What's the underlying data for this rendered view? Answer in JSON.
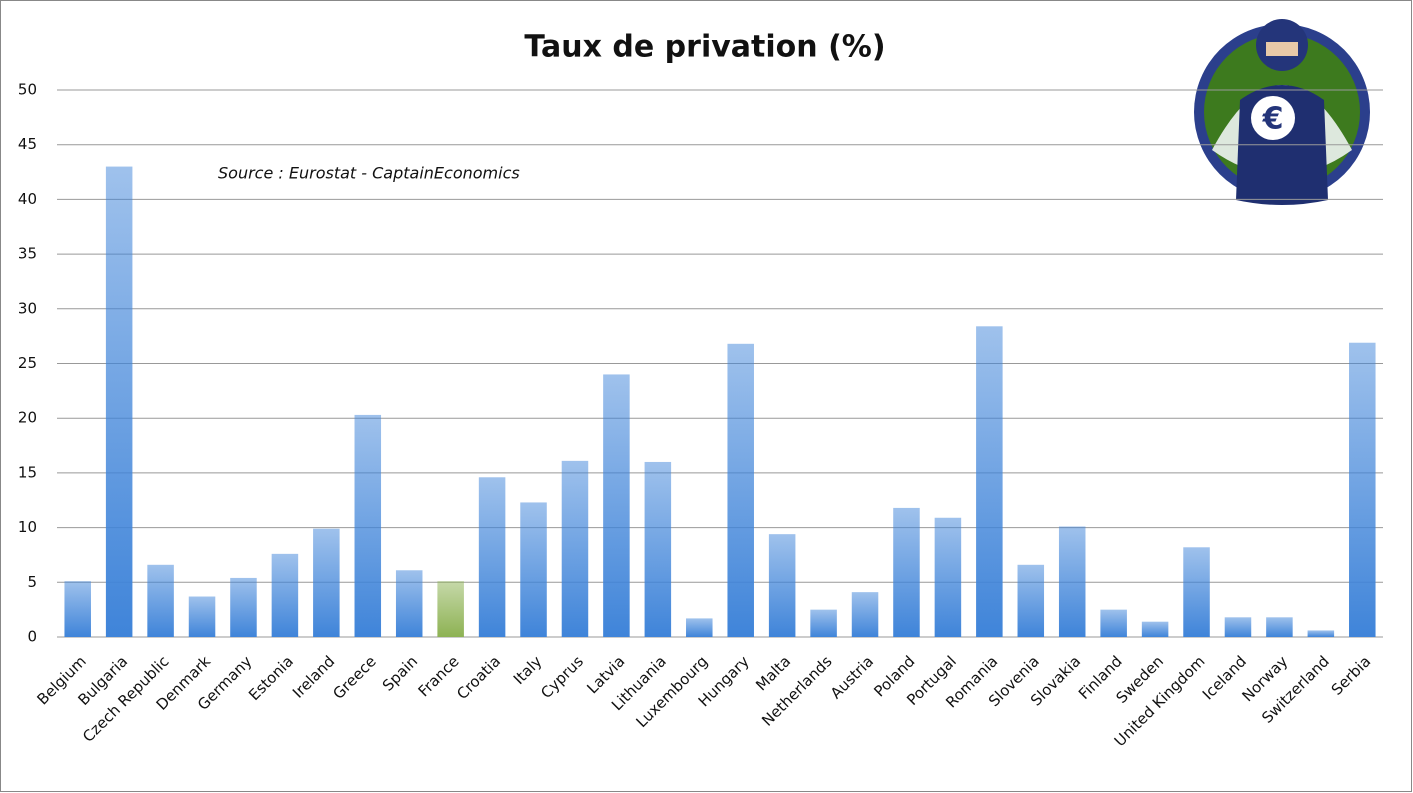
{
  "chart_data": {
    "type": "bar",
    "title": "Taux de privation (%)",
    "annotation": "Source : Eurostat - CaptainEconomics",
    "categories": [
      "Belgium",
      "Bulgaria",
      "Czech Republic",
      "Denmark",
      "Germany",
      "Estonia",
      "Ireland",
      "Greece",
      "Spain",
      "France",
      "Croatia",
      "Italy",
      "Cyprus",
      "Latvia",
      "Lithuania",
      "Luxembourg",
      "Hungary",
      "Malta",
      "Netherlands",
      "Austria",
      "Poland",
      "Portugal",
      "Romania",
      "Slovenia",
      "Slovakia",
      "Finland",
      "Sweden",
      "United Kingdom",
      "Iceland",
      "Norway",
      "Switzerland",
      "Serbia"
    ],
    "values": [
      5.1,
      43.0,
      6.6,
      3.7,
      5.4,
      7.6,
      9.9,
      20.3,
      6.1,
      5.1,
      14.6,
      12.3,
      16.1,
      24.0,
      16.0,
      1.7,
      26.8,
      9.4,
      2.5,
      4.1,
      11.8,
      10.9,
      28.4,
      6.6,
      10.1,
      2.5,
      1.4,
      8.2,
      1.8,
      1.8,
      0.6,
      26.9
    ],
    "colors": [
      "#3f84d9",
      "#3f84d9",
      "#3f84d9",
      "#3f84d9",
      "#3f84d9",
      "#3f84d9",
      "#3f84d9",
      "#3f84d9",
      "#3f84d9",
      "#8db253",
      "#3f84d9",
      "#3f84d9",
      "#3f84d9",
      "#3f84d9",
      "#3f84d9",
      "#3f84d9",
      "#3f84d9",
      "#3f84d9",
      "#3f84d9",
      "#3f84d9",
      "#3f84d9",
      "#3f84d9",
      "#3f84d9",
      "#3f84d9",
      "#3f84d9",
      "#3f84d9",
      "#3f84d9",
      "#3f84d9",
      "#3f84d9",
      "#3f84d9",
      "#3f84d9",
      "#3f84d9"
    ],
    "ylim": [
      0,
      50
    ],
    "yticks": [
      0,
      5,
      10,
      15,
      20,
      25,
      30,
      35,
      40,
      45,
      50
    ],
    "grid": true
  }
}
